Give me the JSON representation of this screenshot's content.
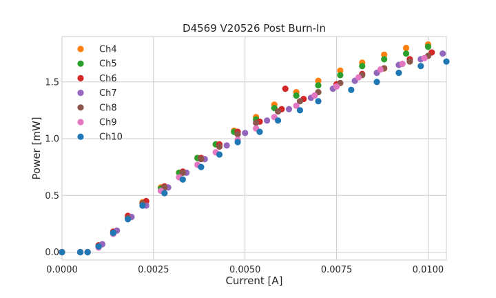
{
  "chart_data": {
    "type": "scatter",
    "title": "D4569 V20526 Post Burn-In",
    "xlabel": "Current [A]",
    "ylabel": "Power [mW]",
    "xlim": [
      0,
      0.0105
    ],
    "ylim": [
      -0.07,
      1.9
    ],
    "xticks": [
      0,
      0.0025,
      0.005,
      0.0075,
      0.01
    ],
    "xtick_labels": [
      "0.0000",
      "0.0025",
      "0.0050",
      "0.0075",
      "0.0100"
    ],
    "yticks": [
      0,
      0.5,
      1.0,
      1.5
    ],
    "ytick_labels": [
      "0.0",
      "0.5",
      "1.0",
      "1.5"
    ],
    "grid": true,
    "legend_position": "top-left",
    "series": [
      {
        "name": "Ch4",
        "color": "#ff7f0e",
        "x": [
          0,
          0.0005,
          0.0007,
          0.001,
          0.0014,
          0.0018,
          0.0022,
          0.0027,
          0.0032,
          0.0037,
          0.0042,
          0.0047,
          0.0053,
          0.0058,
          0.0064,
          0.007,
          0.0076,
          0.0082,
          0.0088,
          0.0094,
          0.01
        ],
        "y": [
          0,
          0,
          0,
          0.05,
          0.18,
          0.31,
          0.44,
          0.57,
          0.7,
          0.83,
          0.95,
          1.07,
          1.19,
          1.3,
          1.41,
          1.51,
          1.6,
          1.67,
          1.74,
          1.8,
          1.83
        ]
      },
      {
        "name": "Ch5",
        "color": "#2ca02c",
        "x": [
          0,
          0.0005,
          0.0007,
          0.001,
          0.0014,
          0.0018,
          0.0022,
          0.0027,
          0.0032,
          0.0037,
          0.0042,
          0.0047,
          0.0053,
          0.0058,
          0.0064,
          0.007,
          0.0076,
          0.0082,
          0.0088,
          0.0094,
          0.01
        ],
        "y": [
          0,
          0,
          0,
          0.05,
          0.17,
          0.3,
          0.43,
          0.56,
          0.7,
          0.83,
          0.95,
          1.06,
          1.17,
          1.27,
          1.38,
          1.47,
          1.56,
          1.64,
          1.7,
          1.75,
          1.81
        ]
      },
      {
        "name": "Ch6",
        "color": "#d62728",
        "x": [
          0,
          0.0005,
          0.0007,
          0.001,
          0.0014,
          0.0018,
          0.0023,
          0.0028,
          0.0033,
          0.0038,
          0.0043,
          0.0048,
          0.0054,
          0.006,
          0.0061,
          0.0066,
          0.0075,
          0.0082,
          0.0088,
          0.0095,
          0.0101
        ],
        "y": [
          0,
          0,
          0,
          0.06,
          0.18,
          0.32,
          0.45,
          0.58,
          0.71,
          0.83,
          0.95,
          1.06,
          1.15,
          1.26,
          1.44,
          1.35,
          1.48,
          1.57,
          1.62,
          1.7,
          1.76
        ]
      },
      {
        "name": "Ch7",
        "color": "#9467bd",
        "x": [
          0,
          0.0005,
          0.0007,
          0.0011,
          0.0015,
          0.0019,
          0.0023,
          0.0029,
          0.0034,
          0.0039,
          0.0045,
          0.005,
          0.0056,
          0.0062,
          0.0068,
          0.0074,
          0.008,
          0.0086,
          0.0092,
          0.0098,
          0.0104
        ],
        "y": [
          0,
          0,
          0,
          0.07,
          0.19,
          0.31,
          0.41,
          0.57,
          0.7,
          0.82,
          0.94,
          1.05,
          1.16,
          1.26,
          1.36,
          1.44,
          1.51,
          1.58,
          1.65,
          1.7,
          1.75
        ]
      },
      {
        "name": "Ch8",
        "color": "#8c564b",
        "x": [
          0,
          0.0005,
          0.0007,
          0.001,
          0.0014,
          0.0018,
          0.0022,
          0.0028,
          0.0033,
          0.0038,
          0.0043,
          0.0048,
          0.0053,
          0.0059,
          0.0065,
          0.007,
          0.0076,
          0.0082,
          0.0088,
          0.0095,
          0.01
        ],
        "y": [
          0,
          0,
          0,
          0.05,
          0.17,
          0.3,
          0.43,
          0.57,
          0.7,
          0.82,
          0.93,
          1.04,
          1.14,
          1.24,
          1.33,
          1.41,
          1.49,
          1.56,
          1.62,
          1.68,
          1.73
        ]
      },
      {
        "name": "Ch9",
        "color": "#e377c2",
        "x": [
          0,
          0.0005,
          0.0007,
          0.001,
          0.0014,
          0.0018,
          0.0022,
          0.0027,
          0.0032,
          0.0037,
          0.0042,
          0.0048,
          0.0053,
          0.0058,
          0.0064,
          0.0069,
          0.0075,
          0.0081,
          0.0087,
          0.0093,
          0.0099
        ],
        "y": [
          0,
          0,
          0,
          0.04,
          0.16,
          0.29,
          0.41,
          0.54,
          0.66,
          0.77,
          0.88,
          0.99,
          1.09,
          1.19,
          1.29,
          1.38,
          1.46,
          1.54,
          1.61,
          1.66,
          1.71
        ]
      },
      {
        "name": "Ch10",
        "color": "#1f77b4",
        "x": [
          0,
          0.0005,
          0.0007,
          0.001,
          0.0014,
          0.0018,
          0.0022,
          0.0028,
          0.0033,
          0.0038,
          0.0043,
          0.0048,
          0.0054,
          0.0059,
          0.0065,
          0.007,
          0.0079,
          0.0086,
          0.0092,
          0.0098,
          0.0105
        ],
        "y": [
          0,
          0,
          0,
          0.05,
          0.17,
          0.29,
          0.41,
          0.52,
          0.64,
          0.75,
          0.86,
          0.97,
          1.06,
          1.16,
          1.25,
          1.33,
          1.43,
          1.5,
          1.58,
          1.64,
          1.68
        ]
      }
    ]
  }
}
